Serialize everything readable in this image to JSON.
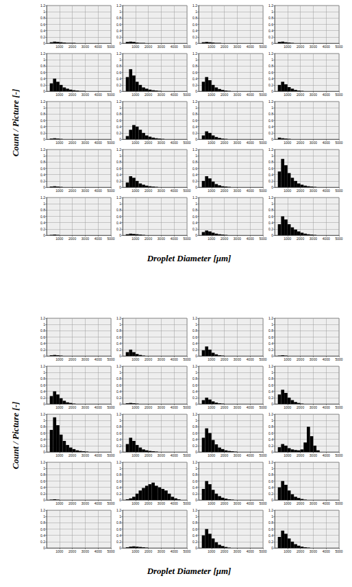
{
  "chart_data": [
    {
      "type": "histogram",
      "x_label": "Droplet Diameter [μm]",
      "y_label": "Count / Picture [-]",
      "color": "#000000",
      "grid": true,
      "xlim": [
        0,
        5000
      ],
      "xticks": [
        1000,
        2000,
        3000,
        4000,
        5000
      ],
      "ylim": [
        0,
        1.2
      ],
      "yticks": [
        0,
        0.2,
        0.4,
        0.6,
        0.8,
        1,
        1.2
      ],
      "bins": [
        0,
        250,
        500,
        750,
        1000,
        1250,
        1500,
        1750,
        2000,
        2250,
        2500,
        2750,
        3000,
        3250,
        3500,
        3750,
        4000,
        4250,
        4500,
        4750,
        5000
      ],
      "panels": [
        [
          [
            0,
            0.03,
            0.05,
            0.04,
            0.03,
            0.02,
            0.01,
            0.01,
            0.01,
            0,
            0,
            0,
            0,
            0,
            0,
            0,
            0,
            0,
            0,
            0
          ],
          [
            0,
            0.04,
            0.05,
            0.04,
            0.02,
            0.01,
            0.01,
            0,
            0,
            0,
            0,
            0,
            0,
            0,
            0,
            0,
            0,
            0,
            0,
            0
          ],
          [
            0,
            0.03,
            0.04,
            0.03,
            0.02,
            0.01,
            0.01,
            0,
            0,
            0,
            0,
            0,
            0,
            0,
            0,
            0,
            0,
            0,
            0,
            0
          ],
          [
            0,
            0.04,
            0.05,
            0.03,
            0.02,
            0.01,
            0,
            0,
            0,
            0,
            0,
            0,
            0,
            0,
            0,
            0,
            0,
            0,
            0,
            0
          ]
        ],
        [
          [
            0,
            0.25,
            0.4,
            0.3,
            0.2,
            0.12,
            0.08,
            0.05,
            0.03,
            0.02,
            0.01,
            0.01,
            0,
            0,
            0,
            0,
            0,
            0,
            0,
            0
          ],
          [
            0,
            0.45,
            0.7,
            0.5,
            0.3,
            0.2,
            0.12,
            0.08,
            0.05,
            0.03,
            0.02,
            0.01,
            0,
            0,
            0,
            0,
            0,
            0,
            0,
            0
          ],
          [
            0,
            0.3,
            0.45,
            0.35,
            0.2,
            0.12,
            0.07,
            0.04,
            0.02,
            0.01,
            0,
            0,
            0,
            0,
            0,
            0,
            0,
            0,
            0,
            0
          ],
          [
            0,
            0.2,
            0.3,
            0.22,
            0.13,
            0.08,
            0.04,
            0.02,
            0.01,
            0,
            0,
            0,
            0,
            0,
            0,
            0,
            0,
            0,
            0,
            0
          ]
        ],
        [
          [
            0,
            0.02,
            0.03,
            0.02,
            0.01,
            0,
            0,
            0,
            0,
            0,
            0,
            0,
            0,
            0,
            0,
            0,
            0,
            0,
            0,
            0
          ],
          [
            0,
            0.1,
            0.3,
            0.45,
            0.4,
            0.3,
            0.2,
            0.12,
            0.08,
            0.05,
            0.03,
            0.02,
            0.01,
            0,
            0,
            0,
            0,
            0,
            0,
            0
          ],
          [
            0,
            0.12,
            0.25,
            0.2,
            0.12,
            0.07,
            0.04,
            0.02,
            0.01,
            0,
            0,
            0,
            0,
            0,
            0,
            0,
            0,
            0,
            0,
            0
          ],
          [
            0,
            0.05,
            0.03,
            0.02,
            0.01,
            0,
            0,
            0,
            0,
            0,
            0,
            0,
            0,
            0,
            0,
            0,
            0,
            0,
            0,
            0
          ]
        ],
        [
          [
            0,
            0.02,
            0.03,
            0.02,
            0.01,
            0,
            0,
            0,
            0,
            0,
            0,
            0,
            0,
            0,
            0,
            0,
            0,
            0,
            0,
            0
          ],
          [
            0,
            0.15,
            0.35,
            0.3,
            0.2,
            0.12,
            0.08,
            0.05,
            0.03,
            0.02,
            0.01,
            0,
            0,
            0,
            0,
            0,
            0,
            0,
            0,
            0
          ],
          [
            0,
            0.2,
            0.35,
            0.28,
            0.18,
            0.1,
            0.06,
            0.03,
            0.02,
            0.01,
            0,
            0,
            0,
            0,
            0,
            0,
            0,
            0,
            0,
            0
          ],
          [
            0,
            0.5,
            0.9,
            0.7,
            0.45,
            0.3,
            0.2,
            0.12,
            0.08,
            0.05,
            0.03,
            0.02,
            0.01,
            0,
            0,
            0,
            0,
            0,
            0,
            0
          ]
        ],
        [
          [
            0,
            0.01,
            0.02,
            0.01,
            0,
            0,
            0,
            0,
            0,
            0,
            0,
            0,
            0,
            0,
            0,
            0,
            0,
            0,
            0,
            0
          ],
          [
            0,
            0.03,
            0.05,
            0.04,
            0.03,
            0.02,
            0.01,
            0,
            0,
            0,
            0,
            0,
            0,
            0,
            0,
            0,
            0,
            0,
            0,
            0
          ],
          [
            0,
            0.1,
            0.15,
            0.12,
            0.08,
            0.05,
            0.03,
            0.02,
            0.01,
            0,
            0,
            0,
            0,
            0,
            0,
            0,
            0,
            0,
            0,
            0
          ],
          [
            0,
            0.35,
            0.6,
            0.5,
            0.35,
            0.25,
            0.18,
            0.12,
            0.08,
            0.05,
            0.03,
            0.02,
            0.01,
            0,
            0,
            0,
            0,
            0,
            0,
            0
          ]
        ]
      ]
    },
    {
      "type": "histogram",
      "x_label": "Droplet Diameter [μm]",
      "y_label": "Count / Picture [-]",
      "color": "#000000",
      "grid": true,
      "xlim": [
        0,
        5000
      ],
      "xticks": [
        1000,
        2000,
        3000,
        4000,
        5000
      ],
      "ylim": [
        0,
        1.2
      ],
      "yticks": [
        0,
        0.2,
        0.4,
        0.6,
        0.8,
        1,
        1.2
      ],
      "bins": [
        0,
        250,
        500,
        750,
        1000,
        1250,
        1500,
        1750,
        2000,
        2250,
        2500,
        2750,
        3000,
        3250,
        3500,
        3750,
        4000,
        4250,
        4500,
        4750,
        5000
      ],
      "panels": [
        [
          [
            0,
            0.02,
            0.03,
            0.02,
            0.01,
            0,
            0,
            0,
            0,
            0,
            0,
            0,
            0,
            0,
            0,
            0,
            0,
            0,
            0,
            0
          ],
          [
            0,
            0.12,
            0.2,
            0.12,
            0.06,
            0.03,
            0.01,
            0,
            0,
            0,
            0,
            0,
            0,
            0,
            0,
            0,
            0,
            0,
            0,
            0
          ],
          [
            0,
            0.18,
            0.3,
            0.2,
            0.1,
            0.05,
            0.02,
            0.01,
            0,
            0,
            0,
            0,
            0,
            0,
            0,
            0,
            0,
            0,
            0,
            0
          ],
          [
            0,
            0.01,
            0.02,
            0.01,
            0,
            0,
            0,
            0,
            0,
            0,
            0,
            0,
            0,
            0,
            0,
            0,
            0,
            0,
            0,
            0
          ]
        ],
        [
          [
            0,
            0.25,
            0.4,
            0.3,
            0.18,
            0.1,
            0.05,
            0.03,
            0.01,
            0,
            0,
            0,
            0,
            0,
            0,
            0,
            0,
            0,
            0,
            0
          ],
          [
            0,
            0.02,
            0.03,
            0.02,
            0.01,
            0,
            0,
            0,
            0,
            0,
            0,
            0,
            0,
            0,
            0,
            0,
            0,
            0,
            0,
            0
          ],
          [
            0,
            0.12,
            0.2,
            0.14,
            0.08,
            0.04,
            0.02,
            0.01,
            0,
            0,
            0,
            0,
            0,
            0,
            0,
            0,
            0,
            0,
            0,
            0
          ],
          [
            0,
            0.3,
            0.45,
            0.35,
            0.2,
            0.12,
            0.06,
            0.03,
            0.01,
            0,
            0,
            0,
            0,
            0,
            0,
            0,
            0,
            0,
            0,
            0
          ]
        ],
        [
          [
            0,
            0.7,
            1.1,
            0.85,
            0.55,
            0.35,
            0.22,
            0.14,
            0.09,
            0.05,
            0.03,
            0.02,
            0.01,
            0,
            0,
            0,
            0,
            0,
            0,
            0
          ],
          [
            0,
            0.25,
            0.45,
            0.35,
            0.22,
            0.14,
            0.08,
            0.05,
            0.03,
            0.02,
            0.01,
            0,
            0,
            0,
            0,
            0,
            0,
            0,
            0,
            0
          ],
          [
            0,
            0.45,
            0.75,
            0.6,
            0.38,
            0.24,
            0.14,
            0.09,
            0.05,
            0.03,
            0.02,
            0.01,
            0,
            0,
            0,
            0,
            0,
            0,
            0,
            0
          ],
          [
            0,
            0.15,
            0.25,
            0.2,
            0.12,
            0.08,
            0.06,
            0.05,
            0.08,
            0.3,
            0.8,
            0.5,
            0.2,
            0.05,
            0,
            0,
            0,
            0,
            0,
            0
          ]
        ],
        [
          [
            0,
            0.01,
            0.02,
            0.01,
            0,
            0,
            0,
            0,
            0,
            0,
            0,
            0,
            0,
            0,
            0,
            0,
            0,
            0,
            0,
            0
          ],
          [
            0,
            0.02,
            0.05,
            0.1,
            0.2,
            0.3,
            0.38,
            0.45,
            0.5,
            0.55,
            0.45,
            0.4,
            0.35,
            0.3,
            0.2,
            0.1,
            0.05,
            0.02,
            0,
            0
          ],
          [
            0,
            0.35,
            0.6,
            0.5,
            0.32,
            0.2,
            0.12,
            0.07,
            0.04,
            0.02,
            0.01,
            0,
            0,
            0,
            0,
            0,
            0,
            0,
            0,
            0
          ],
          [
            0,
            0.4,
            0.6,
            0.48,
            0.3,
            0.18,
            0.1,
            0.06,
            0.03,
            0.01,
            0,
            0,
            0,
            0,
            0,
            0,
            0,
            0,
            0,
            0
          ]
        ],
        [
          [
            0,
            0,
            0,
            0,
            0,
            0,
            0,
            0,
            0,
            0,
            0,
            0,
            0,
            0,
            0,
            0,
            0,
            0,
            0,
            0
          ],
          [
            0,
            0.02,
            0.04,
            0.05,
            0.04,
            0.03,
            0.02,
            0.01,
            0,
            0,
            0,
            0,
            0,
            0,
            0,
            0,
            0,
            0,
            0,
            0
          ],
          [
            0,
            0.4,
            0.6,
            0.45,
            0.3,
            0.18,
            0.1,
            0.06,
            0.03,
            0.01,
            0,
            0,
            0,
            0,
            0,
            0,
            0,
            0,
            0,
            0
          ],
          [
            0,
            0.35,
            0.55,
            0.45,
            0.3,
            0.2,
            0.12,
            0.07,
            0.04,
            0.02,
            0.01,
            0,
            0,
            0,
            0,
            0,
            0,
            0,
            0,
            0
          ]
        ]
      ]
    }
  ]
}
